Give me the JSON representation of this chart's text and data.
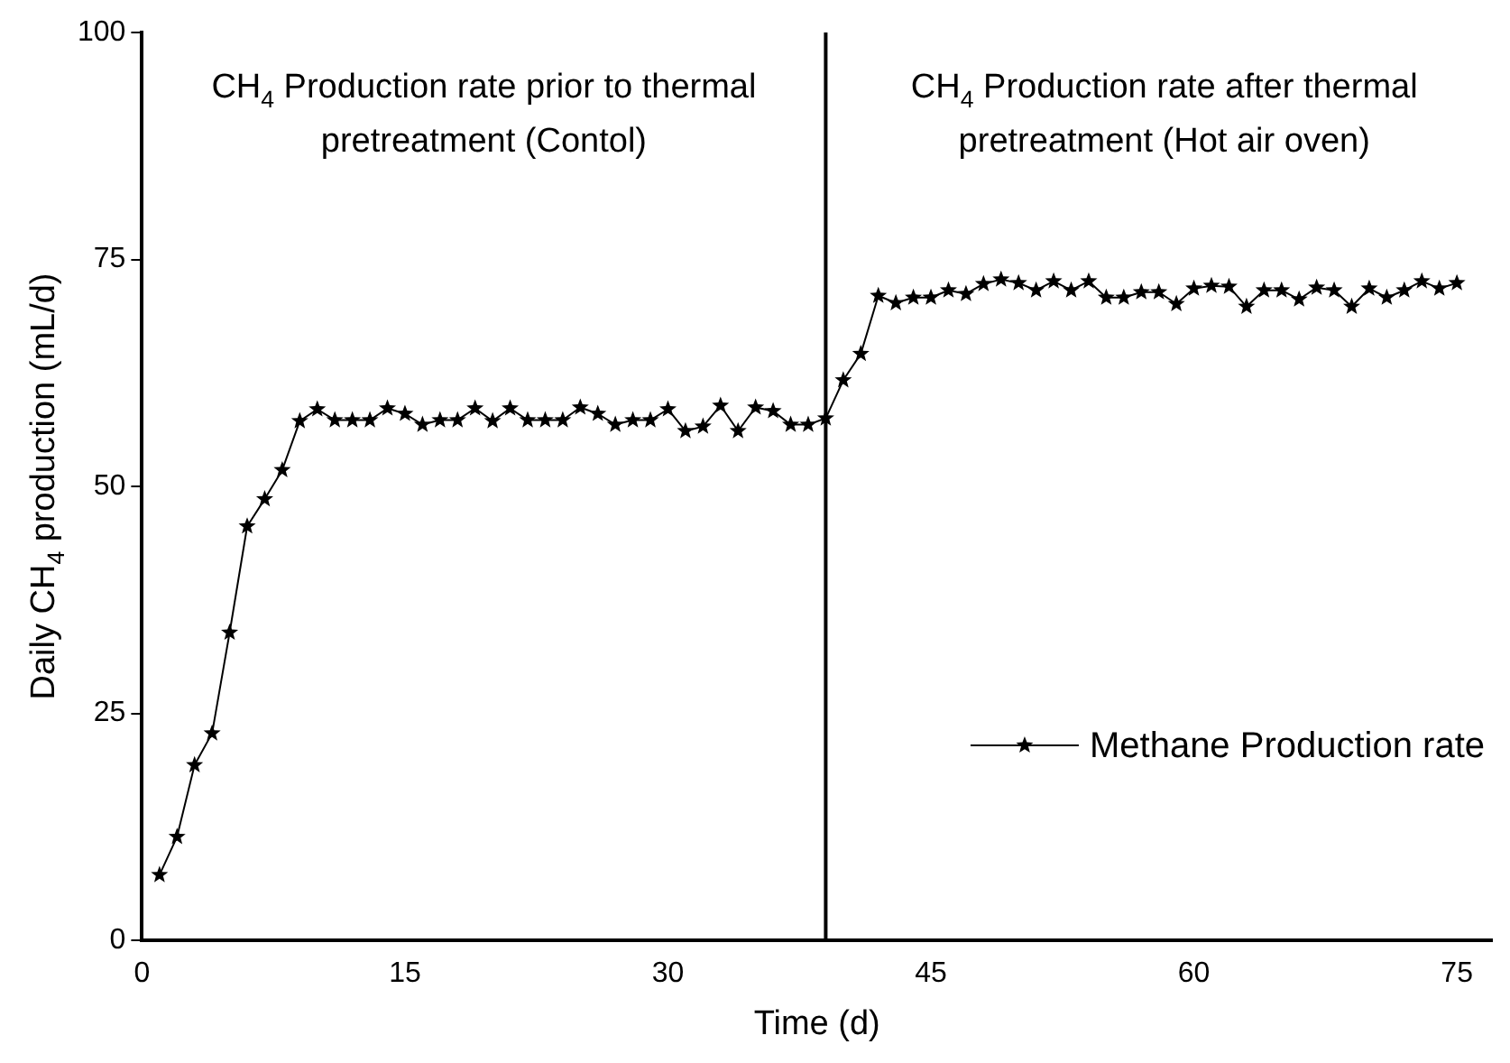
{
  "chart_data": {
    "type": "line",
    "xlabel": "Time (d)",
    "ylabel": "Daily CH$_{4}$ production (mL/d)",
    "x": [
      1,
      2,
      3,
      4,
      5,
      6,
      7,
      8,
      9,
      10,
      11,
      12,
      13,
      14,
      15,
      16,
      17,
      18,
      19,
      20,
      21,
      22,
      23,
      24,
      25,
      26,
      27,
      28,
      29,
      30,
      31,
      32,
      33,
      34,
      35,
      36,
      37,
      38,
      39,
      40,
      41,
      42,
      43,
      44,
      45,
      46,
      47,
      48,
      49,
      50,
      51,
      52,
      53,
      54,
      55,
      56,
      57,
      58,
      59,
      60,
      61,
      62,
      63,
      64,
      65,
      66,
      67,
      68,
      69,
      70,
      71,
      72,
      73,
      74,
      75
    ],
    "series": [
      {
        "name": "Methane Production rate",
        "color": "#000000",
        "values": [
          7.2,
          11.4,
          19.3,
          22.8,
          33.9,
          45.6,
          48.6,
          51.8,
          57.2,
          58.5,
          57.3,
          57.3,
          57.3,
          58.6,
          58,
          56.8,
          57.3,
          57.3,
          58.6,
          57.2,
          58.6,
          57.3,
          57.3,
          57.3,
          58.7,
          58,
          56.8,
          57.3,
          57.3,
          58.5,
          56.1,
          56.6,
          58.9,
          56.1,
          58.7,
          58.3,
          56.8,
          56.8,
          57.5,
          61.7,
          64.6,
          71,
          70.2,
          70.8,
          70.8,
          71.6,
          71.2,
          72.3,
          72.8,
          72.4,
          71.6,
          72.6,
          71.6,
          72.6,
          70.8,
          70.8,
          71.4,
          71.4,
          70.1,
          71.8,
          72.1,
          72,
          69.8,
          71.6,
          71.6,
          70.6,
          71.9,
          71.6,
          69.8,
          71.8,
          70.8,
          71.6,
          72.6,
          71.8,
          72.4
        ]
      }
    ],
    "xlim": [
      0,
      77
    ],
    "xticks": [
      0,
      15,
      30,
      45,
      60,
      75
    ],
    "ylim": [
      0,
      100
    ],
    "yticks": [
      0,
      25,
      50,
      75,
      100
    ],
    "ref_lines": [
      {
        "axis": "x",
        "value": 39,
        "color": "#000000"
      }
    ],
    "annotations": [
      "CH$_{4}$ Production rate prior to thermal pretreatment (Contol)",
      "CH$_{4}$ Production rate after thermal pretreatment (Hot air oven)"
    ],
    "grid": false,
    "legend": "bottom right",
    "marker": "star",
    "line_style": "solid"
  }
}
